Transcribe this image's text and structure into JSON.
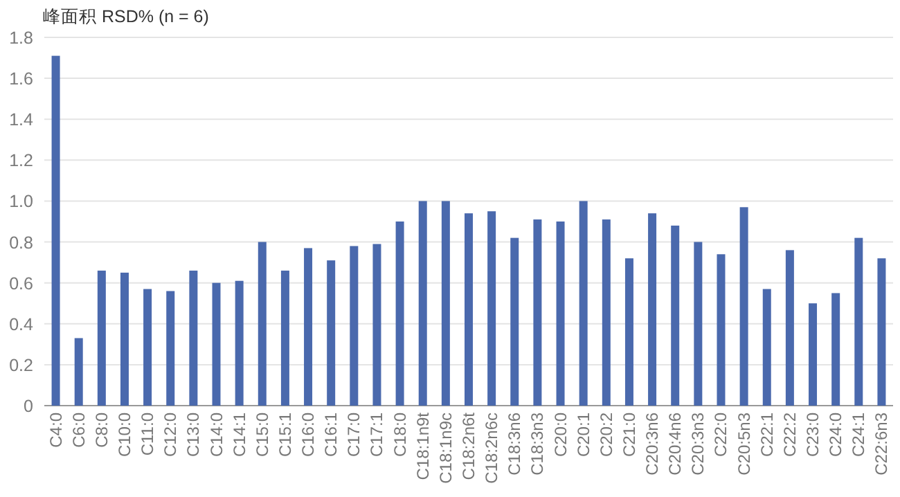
{
  "chart_data": {
    "type": "bar",
    "ylabel": "峰面积 RSD% (n = 6)",
    "categories": [
      "C4:0",
      "C6:0",
      "C8:0",
      "C10:0",
      "C11:0",
      "C12:0",
      "C13:0",
      "C14:0",
      "C14:1",
      "C15:0",
      "C15:1",
      "C16:0",
      "C16:1",
      "C17:0",
      "C17:1",
      "C18:0",
      "C18:1n9t",
      "C18:1n9c",
      "C18:2n6t",
      "C18:2n6c",
      "C18:3n6",
      "C18:3n3",
      "C20:0",
      "C20:1",
      "C20:2",
      "C21:0",
      "C20:3n6",
      "C20:4n6",
      "C20:3n3",
      "C22:0",
      "C20:5n3",
      "C22:1",
      "C22:2",
      "C23:0",
      "C24:0",
      "C24:1",
      "C22:6n3"
    ],
    "values": [
      1.71,
      0.33,
      0.66,
      0.65,
      0.57,
      0.56,
      0.66,
      0.6,
      0.61,
      0.8,
      0.66,
      0.77,
      0.71,
      0.78,
      0.79,
      0.9,
      1.0,
      1.0,
      0.94,
      0.95,
      0.82,
      0.91,
      0.9,
      1.0,
      0.91,
      0.72,
      0.94,
      0.88,
      0.8,
      0.74,
      0.97,
      0.57,
      0.76,
      0.5,
      0.55,
      0.82,
      0.72
    ],
    "color": "#4a69ad",
    "ylim": [
      0,
      1.8
    ],
    "yticks": [
      0,
      {
        "value": 0.2,
        "label": "0.2"
      },
      {
        "value": 0.4,
        "label": "0.4"
      },
      {
        "value": 0.6,
        "label": "0.6"
      },
      {
        "value": 0.8,
        "label": "0.8"
      },
      {
        "value": 1.0,
        "label": "1.0"
      },
      {
        "value": 1.2,
        "label": "1.2"
      },
      {
        "value": 1.4,
        "label": "1.4"
      },
      {
        "value": 1.6,
        "label": "1.6"
      },
      {
        "value": 1.8,
        "label": "1.8"
      }
    ],
    "grid": "y"
  }
}
